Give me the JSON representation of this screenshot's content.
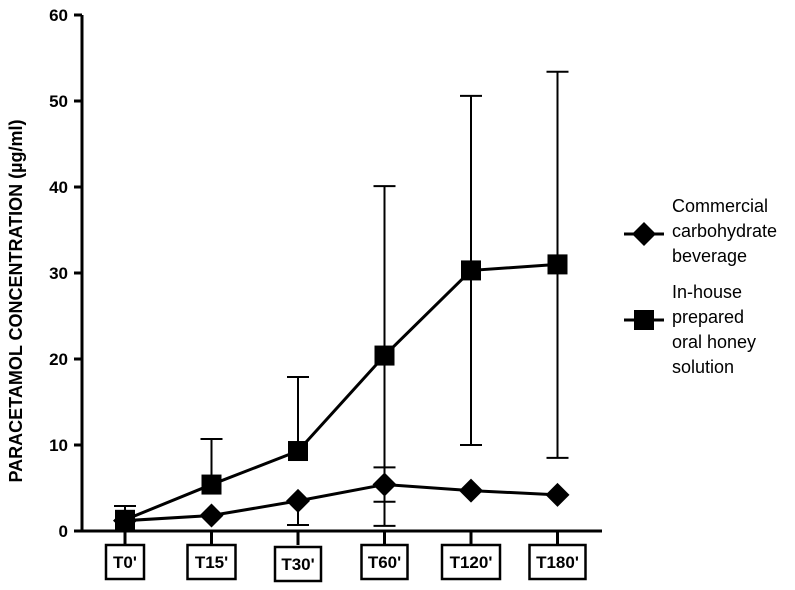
{
  "chart_data": {
    "type": "line",
    "title": "",
    "xlabel": "",
    "ylabel": "PARACETAMOL CONCENTRATION (µg/ml)",
    "ylim": [
      0,
      60
    ],
    "yticks": [
      0,
      10,
      20,
      30,
      40,
      50,
      60
    ],
    "categories": [
      "T0'",
      "T15'",
      "T30'",
      "T60'",
      "T120'",
      "T180'"
    ],
    "legend_position": "right",
    "grid": false,
    "series": [
      {
        "name": "Commercial carbohydrate beverage",
        "marker": "diamond",
        "color": "#000000",
        "legend_lines": [
          "Commercial",
          "carbohydrate",
          "beverage"
        ],
        "values": [
          1.2,
          1.8,
          3.5,
          5.4,
          4.7,
          4.2
        ],
        "error_upper": [
          null,
          null,
          null,
          7.4,
          null,
          null
        ],
        "error_lower": [
          null,
          null,
          0.7,
          3.4,
          null,
          null
        ]
      },
      {
        "name": "In-house prepared oral honey solution",
        "marker": "square",
        "color": "#000000",
        "legend_lines": [
          "In-house",
          "prepared",
          "oral honey",
          "solution"
        ],
        "values": [
          1.3,
          5.4,
          9.3,
          20.4,
          30.3,
          31.0
        ],
        "error_upper": [
          2.9,
          10.7,
          17.9,
          40.1,
          50.6,
          53.4
        ],
        "error_lower": [
          null,
          null,
          null,
          0.6,
          10.0,
          8.5
        ]
      }
    ]
  }
}
